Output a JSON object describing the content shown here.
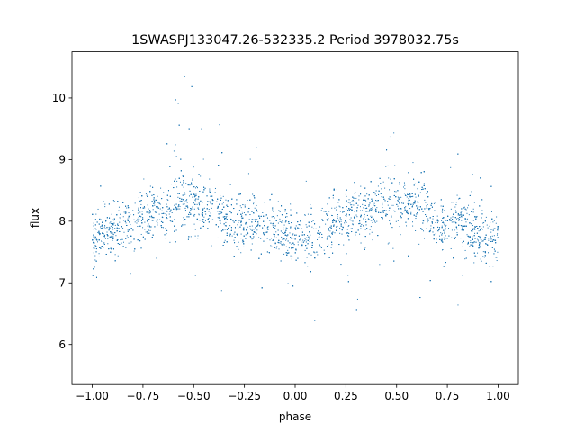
{
  "chart_data": {
    "type": "scatter",
    "title": "1SWASPJ133047.26-532335.2 Period 3978032.75s",
    "xlabel": "phase",
    "ylabel": "flux",
    "xlim": [
      -1.1,
      1.1
    ],
    "ylim": [
      5.35,
      10.75
    ],
    "xticks": [
      -1.0,
      -0.75,
      -0.5,
      -0.25,
      0.0,
      0.25,
      0.5,
      0.75,
      1.0
    ],
    "xtick_labels": [
      "−1.00",
      "−0.75",
      "−0.50",
      "−0.25",
      "0.00",
      "0.25",
      "0.50",
      "0.75",
      "1.00"
    ],
    "yticks": [
      6,
      7,
      8,
      9,
      10
    ],
    "ytick_labels": [
      "6",
      "7",
      "8",
      "9",
      "10"
    ],
    "grid": false,
    "legend": "none",
    "marker_color": "#1f77b4",
    "series": [
      {
        "x": [
          -1.0,
          -0.9,
          -0.8,
          -0.7,
          -0.6,
          -0.55,
          -0.5,
          -0.4,
          -0.3,
          -0.2,
          -0.1,
          0.0,
          0.1,
          0.2,
          0.3,
          0.4,
          0.45,
          0.5,
          0.6,
          0.7,
          0.8,
          0.9,
          1.0
        ],
        "y": [
          7.7,
          7.9,
          8.0,
          8.1,
          8.2,
          8.4,
          8.3,
          8.2,
          7.9,
          8.0,
          7.9,
          7.7,
          7.8,
          8.0,
          8.1,
          8.2,
          8.4,
          8.3,
          8.3,
          7.9,
          8.0,
          7.8,
          7.7
        ]
      }
    ]
  }
}
